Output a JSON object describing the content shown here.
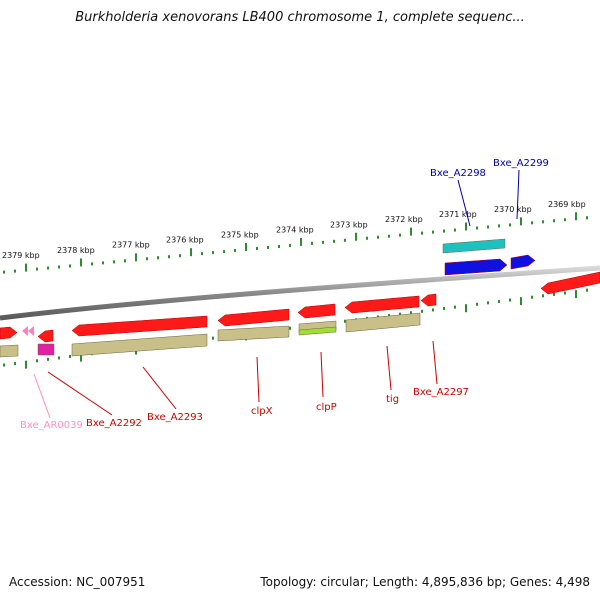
{
  "title": "Burkholderia xenovorans LB400 chromosome 1, complete sequenc...",
  "footer": {
    "accession": "Accession: NC_007951",
    "summary": "Topology: circular; Length: 4,895,836 bp; Genes: 4,498"
  },
  "colors": {
    "background": "#ffffff",
    "backbone": "#8a8a8a",
    "tick": "#2e8b2e",
    "cds_forward": "#ff1a1a",
    "cds_reverse": "#ff1a1a",
    "gene_strip": "#c8c088",
    "blue_gene": "#1010e0",
    "cyan_gene": "#20c0c0",
    "trna": "#ff80c0",
    "magenta": "#e020a0",
    "clpP_strip": "#9de030",
    "label_red": "#cc0000",
    "label_blue": "#0000aa",
    "label_pink": "#ff90c0"
  },
  "ruler": {
    "labels": [
      "2379 kbp",
      "2378 kbp",
      "2377 kbp",
      "2376 kbp",
      "2375 kbp",
      "2374 kbp",
      "2373 kbp",
      "2372 kbp",
      "2371 kbp",
      "2370 kbp",
      "2369 kbp"
    ]
  },
  "gene_labels": [
    {
      "id": "Bxe_A2298",
      "text": "Bxe_A2298",
      "color": "label_blue"
    },
    {
      "id": "Bxe_A2299",
      "text": "Bxe_A2299",
      "color": "label_blue"
    },
    {
      "id": "Bxe_AR0039",
      "text": "Bxe_AR0039",
      "color": "label_pink"
    },
    {
      "id": "Bxe_A2292",
      "text": "Bxe_A2292",
      "color": "label_red"
    },
    {
      "id": "Bxe_A2293",
      "text": "Bxe_A2293",
      "color": "label_red"
    },
    {
      "id": "clpX",
      "text": "clpX",
      "color": "label_red"
    },
    {
      "id": "clpP",
      "text": "clpP",
      "color": "label_red"
    },
    {
      "id": "tig",
      "text": "tig",
      "color": "label_red"
    },
    {
      "id": "Bxe_A2297",
      "text": "Bxe_A2297",
      "color": "label_red"
    }
  ]
}
